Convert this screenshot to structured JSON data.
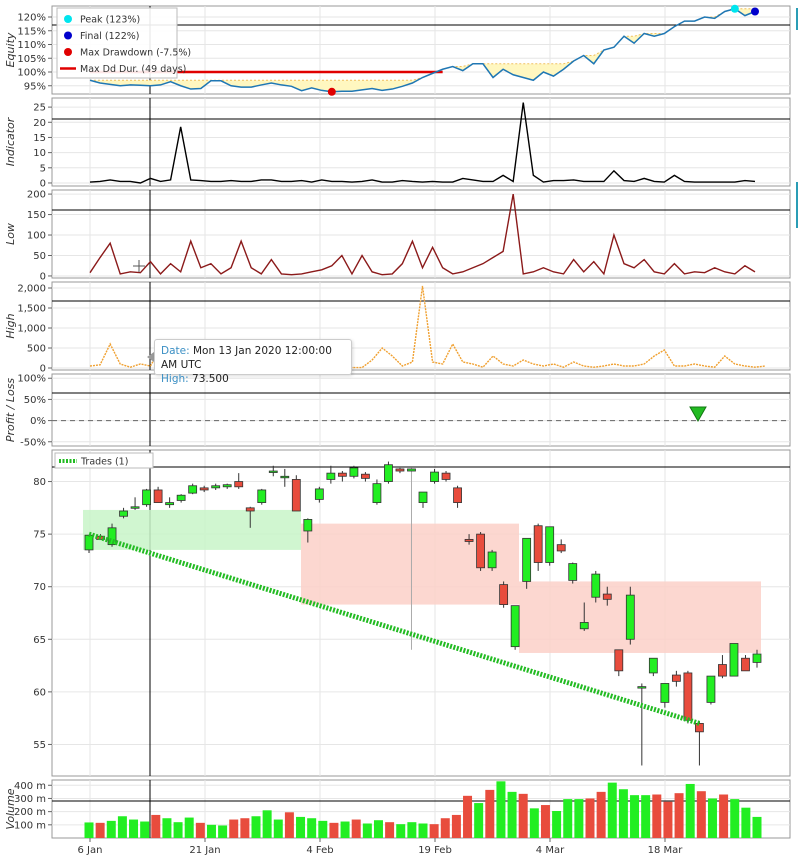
{
  "chart_data": {
    "type": "candlestick-dashboard",
    "x_ticks": [
      "6 Jan",
      "21 Jan",
      "4 Feb",
      "19 Feb",
      "4 Mar",
      "18 Mar"
    ],
    "equity": {
      "ylabel": "Equity",
      "ticks": [
        "95%",
        "100%",
        "105%",
        "110%",
        "115%",
        "120%"
      ],
      "ylim": [
        92,
        124
      ],
      "values": [
        97,
        96,
        95.5,
        95,
        95.3,
        95.2,
        95,
        95.3,
        96.5,
        95,
        93.8,
        94,
        96.8,
        96.8,
        95,
        94.5,
        94.5,
        95.3,
        96,
        95.3,
        94.8,
        93.2,
        94.2,
        93.3,
        92.8,
        93,
        93,
        93.5,
        94,
        93.3,
        93.8,
        94.8,
        96,
        98,
        99.5,
        101,
        102,
        100.5,
        103,
        103,
        98,
        101,
        99,
        98,
        97,
        100,
        98.5,
        101,
        104,
        106,
        103,
        108,
        109,
        113,
        110.5,
        114,
        113,
        114,
        116.5,
        118.5,
        118.5,
        120,
        119.5,
        122,
        123,
        120.5,
        122
      ],
      "legend": [
        "Peak (123%)",
        "Final (122%)",
        "Max Drawdown (-7.5%)",
        "Max Dd Dur. (49 days)"
      ],
      "peak_value": 123,
      "final_value": 122,
      "max_drawdown": -7.5,
      "max_dd_duration_days": 49,
      "colors": {
        "line": "#1f77b4",
        "peak": "#00e5ee",
        "final": "#0000cc",
        "drawdown": "#e00000",
        "fill": "#fff7c0"
      }
    },
    "indicator": {
      "ylabel": "Indicator",
      "ticks": [
        "0",
        "5",
        "10",
        "15",
        "20",
        "25"
      ],
      "ylim": [
        -1,
        28
      ],
      "values": [
        0.3,
        0.5,
        1,
        0.5,
        0.5,
        0,
        1.5,
        0.5,
        1,
        18.5,
        1,
        0.8,
        0.5,
        0.5,
        0.8,
        0.5,
        0.5,
        1,
        1,
        0.5,
        0.5,
        0.8,
        0.3,
        1,
        0.5,
        0.5,
        0.3,
        0.5,
        1,
        0.3,
        0.3,
        0.8,
        0.5,
        0.3,
        0.5,
        0.3,
        0.3,
        1.5,
        1,
        0.5,
        0.5,
        2.5,
        0.5,
        26.5,
        2.5,
        0.3,
        0.8,
        0.8,
        1,
        0.5,
        0.5,
        0.5,
        4,
        0.8,
        0.5,
        1.5,
        0.5,
        0.3,
        2.5,
        0.5,
        0.3,
        0.3,
        0.3,
        0.3,
        0.3,
        0.8,
        0.5
      ],
      "color": "#000000"
    },
    "low": {
      "ylabel": "Low",
      "ticks": [
        "0",
        "50",
        "100",
        "150",
        "200"
      ],
      "ylim": [
        -5,
        210
      ],
      "values": [
        8,
        45,
        80,
        5,
        10,
        8,
        35,
        5,
        30,
        10,
        85,
        20,
        30,
        5,
        20,
        85,
        20,
        5,
        40,
        5,
        3,
        5,
        10,
        15,
        25,
        50,
        5,
        50,
        10,
        3,
        5,
        30,
        85,
        20,
        70,
        20,
        5,
        10,
        20,
        30,
        45,
        60,
        200,
        5,
        10,
        20,
        10,
        5,
        40,
        10,
        35,
        5,
        100,
        30,
        20,
        40,
        10,
        5,
        30,
        5,
        10,
        8,
        20,
        10,
        5,
        25,
        10
      ],
      "color": "#8b1a1a"
    },
    "high": {
      "ylabel": "High",
      "ticks": [
        "0",
        "500",
        "1,000",
        "1,500",
        "2,000"
      ],
      "ylim": [
        -50,
        2150
      ],
      "values": [
        50,
        80,
        600,
        100,
        20,
        100,
        50,
        500,
        80,
        50,
        20,
        100,
        20,
        300,
        100,
        50,
        20,
        100,
        50,
        150,
        20,
        10,
        100,
        50,
        300,
        150,
        10,
        10,
        200,
        500,
        300,
        50,
        150,
        2050,
        150,
        100,
        600,
        150,
        100,
        20,
        300,
        100,
        50,
        200,
        100,
        50,
        100,
        20,
        150,
        50,
        20,
        50,
        100,
        50,
        50,
        100,
        300,
        450,
        50,
        50,
        100,
        50,
        20,
        300,
        100,
        50,
        20,
        50
      ],
      "color": "#f0a030"
    },
    "profit_loss": {
      "ylabel": "Profit / Loss",
      "ticks": [
        "-50%",
        "0%",
        "50%",
        "100%"
      ],
      "ylim": [
        -60,
        110
      ],
      "trade_exit_pct": 6,
      "color": "#22bb22"
    },
    "price": {
      "ylabel": "",
      "ticks": [
        "55",
        "60",
        "65",
        "70",
        "75",
        "80"
      ],
      "ylim": [
        52,
        83
      ],
      "legend": "Trades (1)",
      "candles": [
        {
          "o": 73.5,
          "h": 74.9,
          "l": 73.2,
          "c": 74.9
        },
        {
          "o": 74.8,
          "h": 75.0,
          "l": 74.5,
          "c": 74.5
        },
        {
          "o": 74.0,
          "h": 76.0,
          "l": 73.8,
          "c": 75.6
        },
        {
          "o": 76.7,
          "h": 77.5,
          "l": 76.5,
          "c": 77.2
        },
        {
          "o": 77.5,
          "h": 78.5,
          "l": 77.3,
          "c": 77.6
        },
        {
          "o": 77.8,
          "h": 79.3,
          "l": 77.6,
          "c": 79.2
        },
        {
          "o": 79.2,
          "h": 79.5,
          "l": 78.0,
          "c": 78.0
        },
        {
          "o": 77.8,
          "h": 78.5,
          "l": 77.5,
          "c": 78.0
        },
        {
          "o": 78.2,
          "h": 78.8,
          "l": 78.0,
          "c": 78.7
        },
        {
          "o": 78.9,
          "h": 79.8,
          "l": 78.8,
          "c": 79.6
        },
        {
          "o": 79.4,
          "h": 79.6,
          "l": 79.0,
          "c": 79.2
        },
        {
          "o": 79.4,
          "h": 79.8,
          "l": 79.2,
          "c": 79.6
        },
        {
          "o": 79.5,
          "h": 79.8,
          "l": 79.3,
          "c": 79.7
        },
        {
          "o": 80.0,
          "h": 80.8,
          "l": 79.3,
          "c": 79.5
        },
        {
          "o": 77.5,
          "h": 77.6,
          "l": 75.6,
          "c": 77.2
        },
        {
          "o": 78.0,
          "h": 79.3,
          "l": 77.8,
          "c": 79.2
        },
        {
          "o": 80.9,
          "h": 81.5,
          "l": 80.5,
          "c": 81.0
        },
        {
          "o": 80.5,
          "h": 81.2,
          "l": 79.5,
          "c": 80.5
        },
        {
          "o": 80.2,
          "h": 80.6,
          "l": 77.2,
          "c": 77.2
        },
        {
          "o": 75.3,
          "h": 76.5,
          "l": 74.2,
          "c": 76.4
        },
        {
          "o": 78.3,
          "h": 79.5,
          "l": 78.0,
          "c": 79.3
        },
        {
          "o": 80.2,
          "h": 81.5,
          "l": 79.8,
          "c": 80.8
        },
        {
          "o": 80.8,
          "h": 81.0,
          "l": 80.0,
          "c": 80.5
        },
        {
          "o": 80.5,
          "h": 81.5,
          "l": 80.3,
          "c": 81.3
        },
        {
          "o": 80.7,
          "h": 80.9,
          "l": 80.0,
          "c": 80.3
        },
        {
          "o": 78.0,
          "h": 80.2,
          "l": 77.8,
          "c": 79.8
        },
        {
          "o": 80.0,
          "h": 81.9,
          "l": 79.8,
          "c": 81.6
        },
        {
          "o": 81.2,
          "h": 81.3,
          "l": 80.8,
          "c": 81.0
        },
        {
          "o": 81.0,
          "h": 81.3,
          "l": 64.0,
          "c": 81.2
        },
        {
          "o": 78.0,
          "h": 79.0,
          "l": 77.5,
          "c": 79.0
        },
        {
          "o": 80.0,
          "h": 81.2,
          "l": 79.8,
          "c": 80.9
        },
        {
          "o": 80.8,
          "h": 81.0,
          "l": 80.0,
          "c": 80.2
        },
        {
          "o": 79.4,
          "h": 79.6,
          "l": 77.5,
          "c": 78.0
        },
        {
          "o": 74.5,
          "h": 75.0,
          "l": 74.0,
          "c": 74.3
        },
        {
          "o": 75.0,
          "h": 75.2,
          "l": 71.5,
          "c": 71.8
        },
        {
          "o": 71.8,
          "h": 73.5,
          "l": 71.5,
          "c": 73.3
        },
        {
          "o": 70.2,
          "h": 70.5,
          "l": 68.0,
          "c": 68.3
        },
        {
          "o": 64.3,
          "h": 68.2,
          "l": 64.0,
          "c": 68.2
        },
        {
          "o": 70.5,
          "h": 74.6,
          "l": 69.8,
          "c": 74.6
        },
        {
          "o": 75.8,
          "h": 76.0,
          "l": 71.5,
          "c": 72.3
        },
        {
          "o": 72.3,
          "h": 75.7,
          "l": 72.0,
          "c": 75.7
        },
        {
          "o": 74.0,
          "h": 74.5,
          "l": 73.2,
          "c": 73.4
        },
        {
          "o": 70.6,
          "h": 72.3,
          "l": 70.3,
          "c": 72.2
        },
        {
          "o": 66.0,
          "h": 68.5,
          "l": 65.8,
          "c": 66.6
        },
        {
          "o": 69.0,
          "h": 71.5,
          "l": 68.5,
          "c": 71.2
        },
        {
          "o": 69.3,
          "h": 70.0,
          "l": 68.2,
          "c": 68.8
        },
        {
          "o": 64.0,
          "h": 64.0,
          "l": 61.5,
          "c": 62.0
        },
        {
          "o": 65.0,
          "h": 70.0,
          "l": 64.5,
          "c": 69.2
        },
        {
          "o": 60.5,
          "h": 60.8,
          "l": 53.0,
          "c": 60.5
        },
        {
          "o": 61.8,
          "h": 63.2,
          "l": 61.5,
          "c": 63.2
        },
        {
          "o": 59.0,
          "h": 60.8,
          "l": 58.5,
          "c": 60.8
        },
        {
          "o": 61.6,
          "h": 62.0,
          "l": 60.5,
          "c": 61.0
        },
        {
          "o": 61.8,
          "h": 62.0,
          "l": 57.0,
          "c": 57.3
        },
        {
          "o": 57.0,
          "h": 57.2,
          "l": 53.0,
          "c": 56.2
        },
        {
          "o": 59.0,
          "h": 61.5,
          "l": 58.8,
          "c": 61.5
        },
        {
          "o": 62.6,
          "h": 63.5,
          "l": 61.3,
          "c": 61.5
        },
        {
          "o": 61.5,
          "h": 64.6,
          "l": 61.5,
          "c": 64.6
        },
        {
          "o": 63.2,
          "h": 63.5,
          "l": 62.0,
          "c": 62.0
        },
        {
          "o": 62.8,
          "h": 64.0,
          "l": 62.3,
          "c": 63.6
        }
      ],
      "trade": {
        "entry_price": 75.0,
        "exit_price": 57.0
      },
      "colors": {
        "up": "#22ee22",
        "down": "#e84c3d",
        "trade": "#22bb22"
      }
    },
    "volume": {
      "ylabel": "Volume",
      "ticks": [
        "100 m",
        "200 m",
        "300 m",
        "400 m"
      ],
      "ylim": [
        0,
        440
      ],
      "values": [
        118,
        115,
        130,
        165,
        140,
        125,
        175,
        150,
        120,
        155,
        115,
        100,
        95,
        140,
        150,
        165,
        210,
        140,
        195,
        160,
        150,
        130,
        115,
        125,
        140,
        110,
        135,
        120,
        105,
        120,
        110,
        105,
        150,
        175,
        320,
        265,
        365,
        430,
        350,
        335,
        225,
        250,
        205,
        295,
        295,
        300,
        350,
        420,
        370,
        325,
        325,
        330,
        275,
        340,
        410,
        355,
        300,
        330,
        295,
        230,
        160
      ],
      "up_colors": "#22ee22",
      "down_colors": "#e84c3d"
    }
  },
  "tooltip": {
    "date_label": "Date:",
    "date_value": "Mon 13 Jan 2020 12:00:00 AM UTC",
    "high_label": "High:",
    "high_value": "73.500"
  }
}
